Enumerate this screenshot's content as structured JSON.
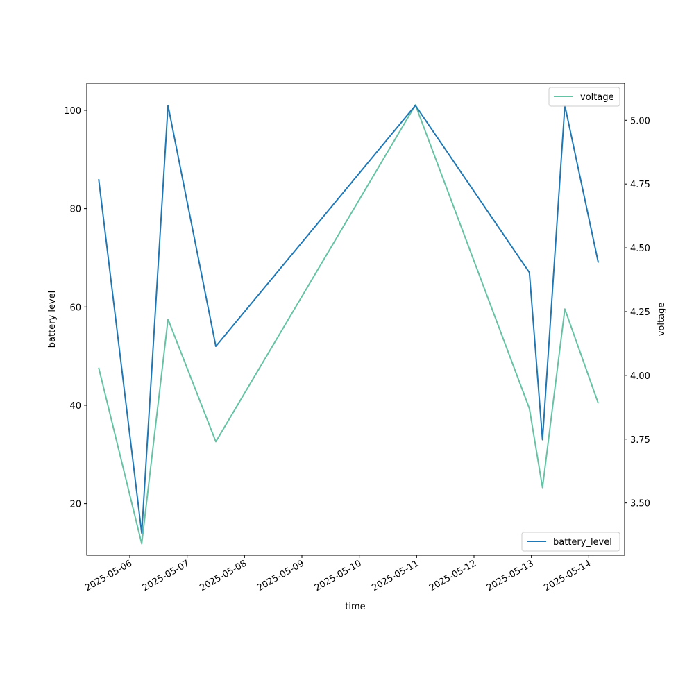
{
  "chart_data": {
    "type": "line",
    "xlabel": "time",
    "ylabel_left": "battery level",
    "ylabel_right": "voltage",
    "xlim": [
      "2025-05-05T06:00",
      "2025-05-14T15:00"
    ],
    "ylim_left": [
      9.5,
      105.5
    ],
    "ylim_right": [
      3.295,
      5.145
    ],
    "x_ticks": [
      "2025-05-06",
      "2025-05-07",
      "2025-05-08",
      "2025-05-09",
      "2025-05-10",
      "2025-05-11",
      "2025-05-12",
      "2025-05-13",
      "2025-05-14"
    ],
    "y_left_ticks": [
      20,
      40,
      60,
      80,
      100
    ],
    "y_right_ticks": [
      "3.50",
      "3.75",
      "4.00",
      "4.25",
      "4.50",
      "4.75",
      "5.00"
    ],
    "x": [
      "2025-05-05T11:00",
      "2025-05-06T05:00",
      "2025-05-06T16:00",
      "2025-05-07T12:00",
      "2025-05-10T23:30",
      "2025-05-12T23:10",
      "2025-05-13T04:40",
      "2025-05-13T14:00",
      "2025-05-14T04:00"
    ],
    "series": [
      {
        "name": "battery_level",
        "axis": "left",
        "color": "#1f77b4",
        "values": [
          86,
          14,
          101,
          52,
          101,
          67,
          33,
          101,
          69
        ]
      },
      {
        "name": "voltage",
        "axis": "right",
        "color": "#66c2a5",
        "values": [
          4.03,
          3.34,
          4.22,
          3.74,
          5.06,
          3.87,
          3.56,
          4.26,
          3.89
        ]
      }
    ],
    "legends": [
      {
        "placement": "upper right",
        "entries": [
          "voltage"
        ]
      },
      {
        "placement": "lower right",
        "entries": [
          "battery_level"
        ]
      }
    ],
    "grid": false
  }
}
